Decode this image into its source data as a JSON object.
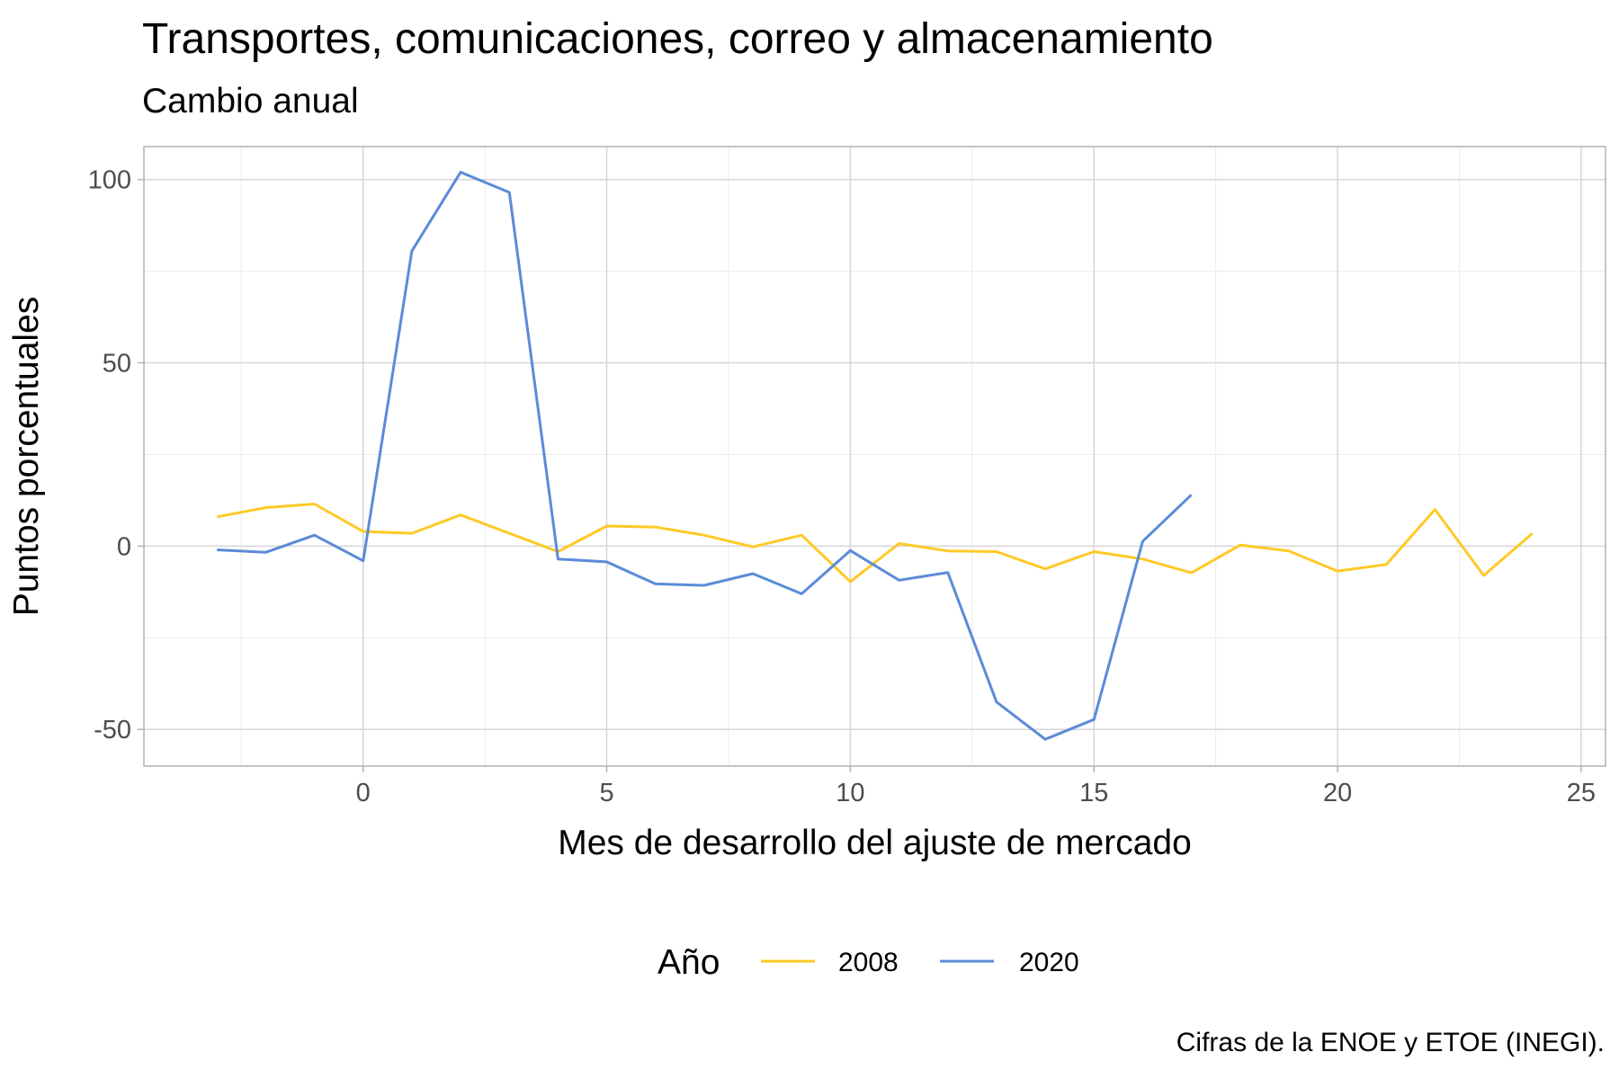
{
  "chart_data": {
    "type": "line",
    "title": "Transportes, comunicaciones, correo y almacenamiento",
    "subtitle": "Cambio anual",
    "xlabel": "Mes de desarrollo del ajuste de mercado",
    "ylabel": "Puntos porcentuales",
    "caption": "Cifras de la ENOE y ETOE (INEGI).",
    "xlim": [
      -4.5,
      25.5
    ],
    "ylim": [
      -60,
      109
    ],
    "x_ticks": [
      0,
      5,
      10,
      15,
      20,
      25
    ],
    "y_ticks": [
      -50,
      0,
      50,
      100
    ],
    "grid": true,
    "legend": {
      "title": "Año",
      "position": "bottom"
    },
    "series": [
      {
        "name": "2008",
        "color": "#ffc926",
        "x": [
          -3,
          -2,
          -1,
          0,
          1,
          2,
          3,
          4,
          5,
          6,
          7,
          8,
          9,
          10,
          11,
          12,
          13,
          14,
          15,
          16,
          17,
          18,
          19,
          20,
          21,
          22,
          23,
          24
        ],
        "values": [
          8,
          10.5,
          11.5,
          4,
          3.5,
          8.5,
          3.5,
          -1.5,
          5.5,
          5.2,
          3,
          -0.2,
          3,
          -9.7,
          0.7,
          -1.3,
          -1.5,
          -6.2,
          -1.5,
          -3.5,
          -7.3,
          0.3,
          -1.3,
          -6.8,
          -5,
          10,
          -8,
          3.5
        ]
      },
      {
        "name": "2020",
        "color": "#5b8bd8",
        "x": [
          -3,
          -2,
          -1,
          0,
          1,
          2,
          3,
          4,
          5,
          6,
          7,
          8,
          9,
          10,
          11,
          12,
          13,
          14,
          15,
          16,
          17
        ],
        "values": [
          -1,
          -1.7,
          3,
          -4,
          80.5,
          102,
          96.5,
          -3.5,
          -4.3,
          -10.3,
          -10.7,
          -7.5,
          -13,
          -1.2,
          -9.3,
          -7.2,
          -42.5,
          -52.7,
          -47.3,
          1.3,
          14
        ]
      }
    ]
  }
}
